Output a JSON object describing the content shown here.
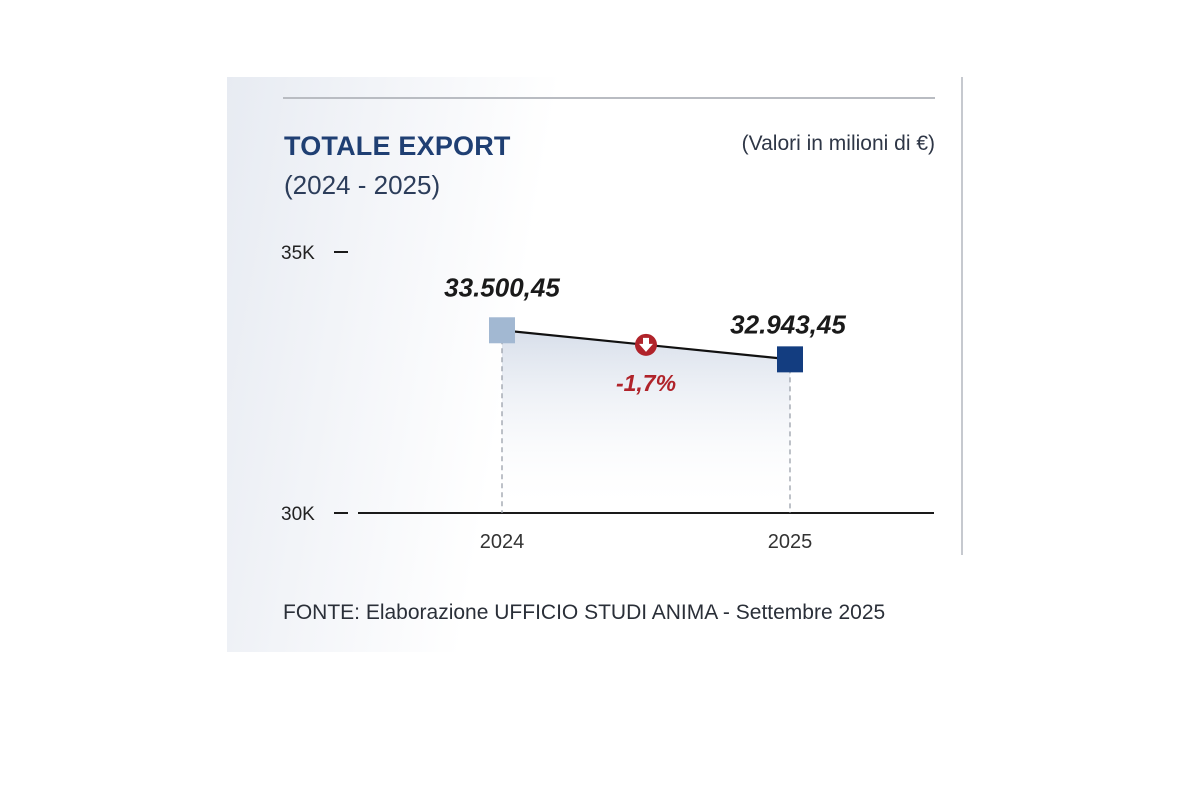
{
  "title": "TOTALE EXPORT",
  "subtitle": "(2024 - 2025)",
  "unit_note": "(Valori in milioni di €)",
  "source": "FONTE: Elaborazione UFFICIO STUDI ANIMA - Settembre 2025",
  "colors": {
    "title": "#1f3f73",
    "marker_2024": "#a2b8d2",
    "marker_2025": "#133d80",
    "change": "#b0232a",
    "line": "#111111"
  },
  "chart_data": {
    "type": "line",
    "title": "TOTALE EXPORT",
    "subtitle": "(2024 - 2025)",
    "ylabel": "(Valori in milioni di €)",
    "categories": [
      "2024",
      "2025"
    ],
    "values": [
      33500.45,
      32943.45
    ],
    "value_labels": [
      "33.500,45",
      "32.943,45"
    ],
    "ylim": [
      30000,
      35000
    ],
    "yticks": [
      {
        "value": 35000,
        "label": "35K"
      },
      {
        "value": 30000,
        "label": "30K"
      }
    ],
    "change": {
      "label": "-1,7%",
      "direction": "down"
    }
  }
}
